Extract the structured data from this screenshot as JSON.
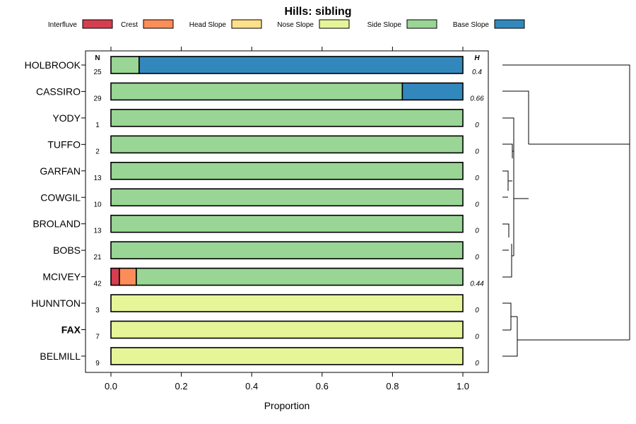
{
  "chart_data": {
    "type": "bar",
    "stacked": true,
    "orientation": "horizontal",
    "title": "Hills: sibling",
    "xlabel": "Proportion",
    "ylabel": "",
    "xlim": [
      0,
      1
    ],
    "xticks": [
      "0.0",
      "0.2",
      "0.4",
      "0.6",
      "0.8",
      "1.0"
    ],
    "n_header": "N",
    "h_header": "H",
    "legend": [
      {
        "name": "Interfluve",
        "color": "#D53E4F"
      },
      {
        "name": "Crest",
        "color": "#FC8D59"
      },
      {
        "name": "Head Slope",
        "color": "#FEE08B"
      },
      {
        "name": "Nose Slope",
        "color": "#E6F598"
      },
      {
        "name": "Side Slope",
        "color": "#99D594"
      },
      {
        "name": "Base Slope",
        "color": "#3288BD"
      }
    ],
    "categories": [
      "HOLBROOK",
      "CASSIRO",
      "YODY",
      "TUFFO",
      "GARFAN",
      "COWGIL",
      "BROLAND",
      "BOBS",
      "MCIVEY",
      "HUNNTON",
      "FAX",
      "BELMILL"
    ],
    "highlight": "FAX",
    "n": [
      "25",
      "29",
      "1",
      "2",
      "13",
      "10",
      "13",
      "21",
      "42",
      "3",
      "7",
      "9"
    ],
    "h": [
      "0.4",
      "0.66",
      "0",
      "0",
      "0",
      "0",
      "0",
      "0",
      "0.44",
      "0",
      "0",
      "0"
    ],
    "series": [
      {
        "name": "Interfluve",
        "values": [
          0,
          0,
          0,
          0,
          0,
          0,
          0,
          0,
          0.024,
          0,
          0,
          0
        ]
      },
      {
        "name": "Crest",
        "values": [
          0,
          0,
          0,
          0,
          0,
          0,
          0,
          0,
          0.048,
          0,
          0,
          0
        ]
      },
      {
        "name": "Head Slope",
        "values": [
          0,
          0,
          0,
          0,
          0,
          0,
          0,
          0,
          0,
          0,
          0,
          0
        ]
      },
      {
        "name": "Nose Slope",
        "values": [
          0,
          0,
          0,
          0,
          0,
          0,
          0,
          0,
          0,
          1,
          1,
          1
        ]
      },
      {
        "name": "Side Slope",
        "values": [
          0.08,
          0.828,
          1,
          1,
          1,
          1,
          1,
          1,
          0.928,
          0,
          0,
          0
        ]
      },
      {
        "name": "Base Slope",
        "values": [
          0.92,
          0.172,
          0,
          0,
          0,
          0,
          0,
          0,
          0,
          0,
          0,
          0
        ]
      }
    ]
  }
}
